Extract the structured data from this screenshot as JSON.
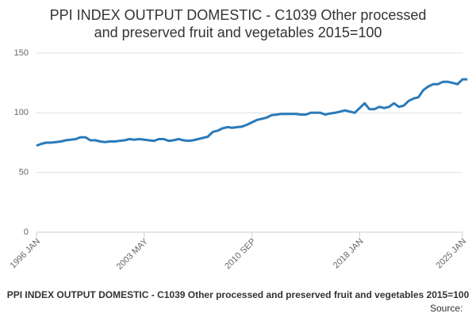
{
  "chart_data": {
    "type": "line",
    "title_lines": [
      "PPI INDEX OUTPUT DOMESTIC - C1039 Other processed",
      "and preserved fruit and vegetables 2015=100"
    ],
    "caption": "PPI INDEX OUTPUT DOMESTIC - C1039 Other processed and preserved fruit and vegetables 2015=100",
    "source": "Source:",
    "color": "#2a7ab9",
    "grid": true,
    "ylim": [
      0,
      150
    ],
    "yticks": [
      0,
      50,
      100,
      150
    ],
    "categories": [
      "1996 JAN",
      null,
      null,
      null,
      null,
      null,
      null,
      null,
      null,
      null,
      null,
      null,
      null,
      null,
      null,
      null,
      null,
      null,
      null,
      null,
      null,
      null,
      "2003 MAY",
      null,
      null,
      null,
      null,
      null,
      null,
      null,
      null,
      null,
      null,
      null,
      null,
      null,
      null,
      null,
      null,
      null,
      null,
      null,
      null,
      null,
      "2010 SEP",
      null,
      null,
      null,
      null,
      null,
      null,
      null,
      null,
      null,
      null,
      null,
      null,
      null,
      null,
      null,
      null,
      null,
      null,
      null,
      null,
      null,
      "2018 JAN",
      null,
      null,
      null,
      null,
      null,
      null,
      null,
      null,
      null,
      null,
      null,
      null,
      null,
      null,
      null,
      null,
      null,
      null,
      null,
      null,
      "2025 JAN",
      null
    ],
    "values": [
      72.5,
      74,
      75,
      75,
      75.5,
      76,
      77,
      77.5,
      78,
      79.5,
      79.5,
      77,
      77,
      76,
      75.5,
      76,
      76,
      76.5,
      77,
      78,
      77.5,
      78,
      77.5,
      77,
      76.5,
      78,
      78,
      76.5,
      77,
      78,
      77,
      76.5,
      77,
      78,
      79,
      80,
      84,
      85,
      87,
      88,
      87.5,
      88,
      88.5,
      90,
      92,
      94,
      95,
      96,
      98,
      98.5,
      99,
      99,
      99,
      99,
      98.5,
      98.5,
      100,
      100,
      100,
      98.5,
      99.5,
      100,
      101,
      102,
      101,
      100,
      104,
      108,
      103,
      103,
      105,
      104,
      105,
      108,
      105,
      106,
      110,
      112,
      113,
      119,
      122,
      124,
      124,
      126,
      126,
      125,
      124,
      128,
      128
    ]
  }
}
